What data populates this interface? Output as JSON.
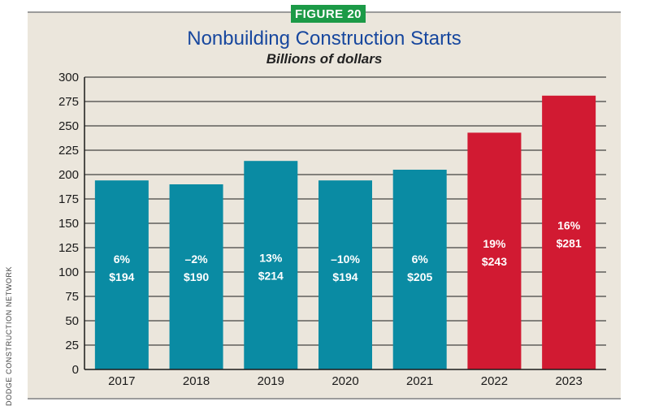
{
  "figure_badge": "FIGURE 20",
  "source": "DODGE CONSTRUCTION NETWORK",
  "colors": {
    "teal": "#0a8ba3",
    "red": "#d11a32",
    "badge_green": "#1c9a47",
    "title_blue": "#17479e",
    "panel": "#ebe6dc"
  },
  "chart_data": {
    "type": "bar",
    "title": "Nonbuilding Construction Starts",
    "subtitle": "Billions of dollars",
    "xlabel": "",
    "ylabel": "",
    "ylim": [
      0,
      300
    ],
    "yticks": [
      0,
      25,
      50,
      75,
      100,
      125,
      150,
      175,
      200,
      225,
      250,
      275,
      300
    ],
    "grid": true,
    "categories": [
      "2017",
      "2018",
      "2019",
      "2020",
      "2021",
      "2022",
      "2023"
    ],
    "values": [
      194,
      190,
      214,
      194,
      205,
      243,
      281
    ],
    "pct_labels": [
      "6%",
      "–2%",
      "13%",
      "–10%",
      "6%",
      "19%",
      "16%"
    ],
    "value_labels": [
      "$194",
      "$190",
      "$214",
      "$194",
      "$205",
      "$243",
      "$281"
    ],
    "bar_colors": [
      "#0a8ba3",
      "#0a8ba3",
      "#0a8ba3",
      "#0a8ba3",
      "#0a8ba3",
      "#d11a32",
      "#d11a32"
    ]
  }
}
